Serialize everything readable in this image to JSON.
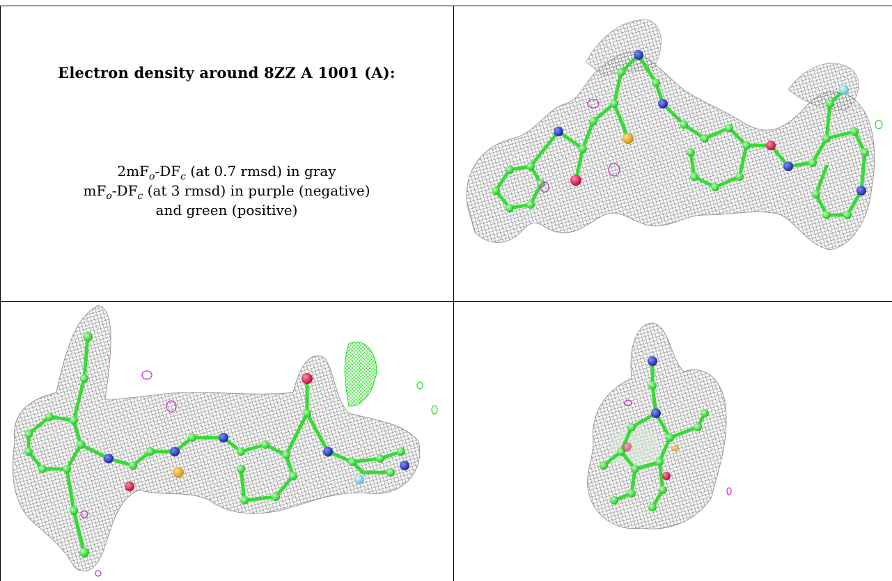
{
  "title": {
    "text": "Electron density around 8ZZ A 1001 (A):"
  },
  "legend": {
    "line1": {
      "prefix": "2mF",
      "sub1": "o",
      "mid": "-DF",
      "sub2": "c",
      "suffix": " (at 0.7 rmsd) in gray"
    },
    "line2": {
      "prefix": "mF",
      "sub1": "o",
      "mid": "-DF",
      "sub2": "c",
      "suffix": " (at 3 rmsd) in purple (negative)"
    },
    "line3": {
      "text": "and green (positive)"
    }
  },
  "colors": {
    "mesh": "#8c8c8c",
    "carbon": "#33ee33",
    "nitrogen": "#2a3fc9",
    "oxygen": "#e01e50",
    "sulfur": "#e6b020",
    "fluorine": "#80d9e0",
    "negative_density": "#d020d0",
    "positive_density": "#22dd22"
  },
  "panels": [
    {
      "name": "view-top-right",
      "icon": "ligand-density-view"
    },
    {
      "name": "view-bottom-left",
      "icon": "ligand-density-view"
    },
    {
      "name": "view-bottom-right",
      "icon": "ligand-density-view"
    }
  ]
}
